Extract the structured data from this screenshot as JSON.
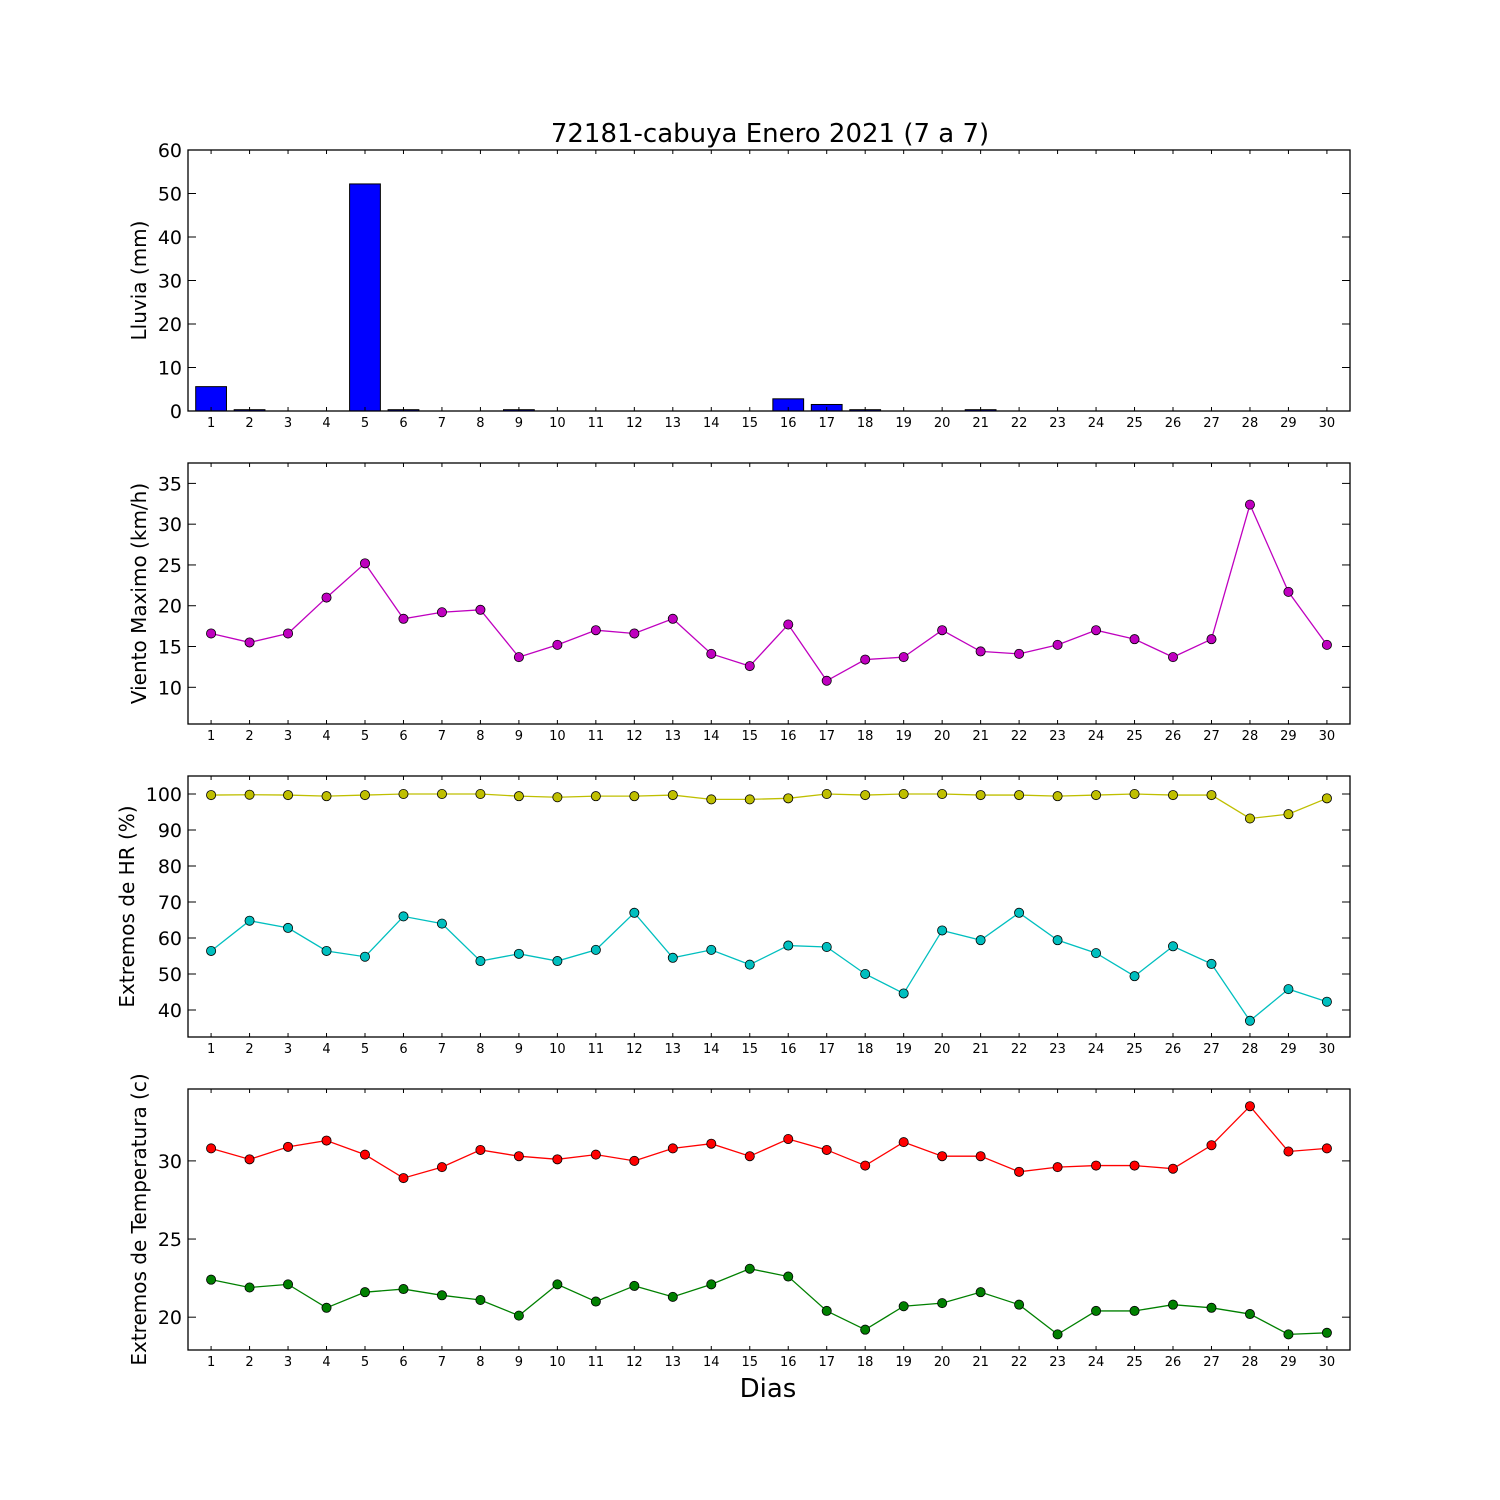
{
  "figure": {
    "title": "72181-cabuya Enero 2021  (7 a 7)",
    "xlabel": "Dias"
  },
  "chart_data": [
    {
      "type": "bar",
      "ylabel": "Lluvia (mm)",
      "ylim": [
        0,
        60
      ],
      "yticks": [
        0,
        10,
        20,
        30,
        40,
        50,
        60
      ],
      "categories": [
        1,
        2,
        3,
        4,
        5,
        6,
        7,
        8,
        9,
        10,
        11,
        12,
        13,
        14,
        15,
        16,
        17,
        18,
        19,
        20,
        21,
        22,
        23,
        24,
        25,
        26,
        27,
        28,
        29,
        30
      ],
      "series": [
        {
          "color": "#0000ff",
          "values": [
            5.6,
            0.3,
            0,
            0,
            52.2,
            0.3,
            0,
            0,
            0.3,
            0,
            0,
            0,
            0,
            0,
            0,
            2.8,
            1.5,
            0.3,
            0,
            0,
            0.3,
            0,
            0,
            0,
            0,
            0,
            0,
            0,
            0,
            0
          ]
        }
      ]
    },
    {
      "type": "line",
      "ylabel": "Viento Maximo (km/h)",
      "ylim": [
        5.5,
        37.5
      ],
      "yticks": [
        10,
        15,
        20,
        25,
        30,
        35
      ],
      "categories": [
        1,
        2,
        3,
        4,
        5,
        6,
        7,
        8,
        9,
        10,
        11,
        12,
        13,
        14,
        15,
        16,
        17,
        18,
        19,
        20,
        21,
        22,
        23,
        24,
        25,
        26,
        27,
        28,
        29,
        30
      ],
      "series": [
        {
          "color": "#bf00bf",
          "values": [
            16.6,
            15.5,
            16.6,
            21.0,
            25.2,
            18.4,
            19.2,
            19.5,
            13.7,
            15.2,
            17.0,
            16.6,
            18.4,
            14.1,
            12.6,
            17.7,
            10.8,
            13.4,
            13.7,
            17.0,
            14.4,
            14.1,
            15.2,
            17.0,
            15.9,
            13.7,
            15.9,
            32.4,
            21.7,
            15.2
          ]
        }
      ]
    },
    {
      "type": "line",
      "ylabel": "Extremos de HR (%)",
      "ylim": [
        32.5,
        105
      ],
      "yticks": [
        40,
        50,
        60,
        70,
        80,
        90,
        100
      ],
      "categories": [
        1,
        2,
        3,
        4,
        5,
        6,
        7,
        8,
        9,
        10,
        11,
        12,
        13,
        14,
        15,
        16,
        17,
        18,
        19,
        20,
        21,
        22,
        23,
        24,
        25,
        26,
        27,
        28,
        29,
        30
      ],
      "series": [
        {
          "color": "#bfbf00",
          "values": [
            99.7,
            99.8,
            99.7,
            99.4,
            99.7,
            100,
            100,
            100,
            99.4,
            99.1,
            99.4,
            99.4,
            99.7,
            98.5,
            98.5,
            98.8,
            100,
            99.7,
            100,
            100,
            99.7,
            99.7,
            99.4,
            99.7,
            100,
            99.7,
            99.7,
            93.2,
            94.4,
            98.8
          ]
        },
        {
          "color": "#00bfbf",
          "values": [
            56.4,
            64.8,
            62.8,
            56.4,
            54.8,
            66.0,
            64.0,
            53.6,
            55.6,
            53.6,
            56.7,
            67.0,
            54.5,
            56.7,
            52.6,
            57.9,
            57.5,
            50.0,
            44.6,
            62.1,
            59.4,
            67.0,
            59.4,
            55.8,
            49.4,
            57.7,
            52.8,
            37.0,
            45.8,
            42.3
          ]
        }
      ]
    },
    {
      "type": "line",
      "ylabel": "Extremos de Temperatura (c)",
      "ylim": [
        17.9,
        34.6
      ],
      "yticks": [
        20,
        25,
        30
      ],
      "categories": [
        1,
        2,
        3,
        4,
        5,
        6,
        7,
        8,
        9,
        10,
        11,
        12,
        13,
        14,
        15,
        16,
        17,
        18,
        19,
        20,
        21,
        22,
        23,
        24,
        25,
        26,
        27,
        28,
        29,
        30
      ],
      "series": [
        {
          "color": "#ff0000",
          "values": [
            30.8,
            30.1,
            30.9,
            31.3,
            30.4,
            28.9,
            29.6,
            30.7,
            30.3,
            30.1,
            30.4,
            30.0,
            30.8,
            31.1,
            30.3,
            31.4,
            30.7,
            29.7,
            31.2,
            30.3,
            30.3,
            29.3,
            29.6,
            29.7,
            29.7,
            29.5,
            31.0,
            33.5,
            30.6,
            30.8
          ]
        },
        {
          "color": "#008000",
          "values": [
            22.4,
            21.9,
            22.1,
            20.6,
            21.6,
            21.8,
            21.4,
            21.1,
            20.1,
            22.1,
            21.0,
            22.0,
            21.3,
            22.1,
            23.1,
            22.6,
            20.4,
            19.2,
            20.7,
            20.9,
            21.6,
            20.8,
            18.9,
            20.4,
            20.4,
            20.8,
            20.6,
            20.2,
            18.9,
            19.0
          ]
        }
      ]
    }
  ]
}
